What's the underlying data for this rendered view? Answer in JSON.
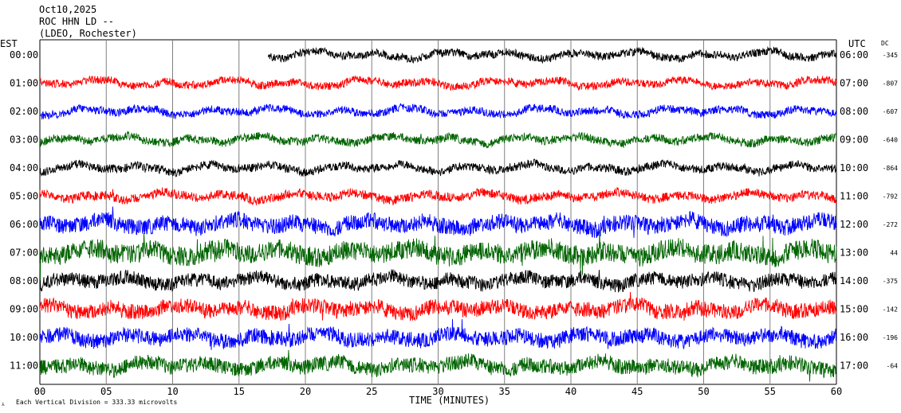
{
  "header": {
    "date": "Oct10,2025",
    "station": "ROC HHN LD --",
    "network": "(LDEO, Rochester)"
  },
  "chart_data": {
    "type": "line",
    "title": "",
    "xlabel": "TIME (MINUTES)",
    "ylabel_left": "EST",
    "ylabel_right": "UTC",
    "offset_label": "DC",
    "footer_note": "Each Vertical Division = 333.33 microvolts",
    "xlim": [
      0,
      60
    ],
    "x_ticks": [
      "00",
      "05",
      "10",
      "15",
      "20",
      "25",
      "30",
      "35",
      "40",
      "45",
      "50",
      "55",
      "60"
    ],
    "grid": true,
    "colors": [
      "#000000",
      "#ff0000",
      "#0000ff",
      "#006400"
    ],
    "rows": [
      {
        "est": "00:00",
        "utc": "06:00",
        "dc": "-345",
        "color": "#000000",
        "start_min": 17.2,
        "noise": 0.35
      },
      {
        "est": "01:00",
        "utc": "07:00",
        "dc": "-807",
        "color": "#ff0000",
        "start_min": 0,
        "noise": 0.35
      },
      {
        "est": "02:00",
        "utc": "08:00",
        "dc": "-607",
        "color": "#0000ff",
        "start_min": 0,
        "noise": 0.35
      },
      {
        "est": "03:00",
        "utc": "09:00",
        "dc": "-640",
        "color": "#006400",
        "start_min": 0,
        "noise": 0.4
      },
      {
        "est": "04:00",
        "utc": "10:00",
        "dc": "-864",
        "color": "#000000",
        "start_min": 0,
        "noise": 0.4
      },
      {
        "est": "05:00",
        "utc": "11:00",
        "dc": "-792",
        "color": "#ff0000",
        "start_min": 0,
        "noise": 0.45
      },
      {
        "est": "06:00",
        "utc": "12:00",
        "dc": "-272",
        "color": "#0000ff",
        "start_min": 0,
        "noise": 1.1
      },
      {
        "est": "07:00",
        "utc": "13:00",
        "dc": "44",
        "color": "#006400",
        "start_min": 0,
        "noise": 1.4
      },
      {
        "est": "08:00",
        "utc": "14:00",
        "dc": "-375",
        "color": "#000000",
        "start_min": 0,
        "noise": 0.9
      },
      {
        "est": "09:00",
        "utc": "15:00",
        "dc": "-142",
        "color": "#ff0000",
        "start_min": 0,
        "noise": 1.0
      },
      {
        "est": "10:00",
        "utc": "16:00",
        "dc": "-196",
        "color": "#0000ff",
        "start_min": 0,
        "noise": 1.0
      },
      {
        "est": "11:00",
        "utc": "17:00",
        "dc": "-64",
        "color": "#006400",
        "start_min": 0,
        "noise": 1.0
      }
    ]
  }
}
